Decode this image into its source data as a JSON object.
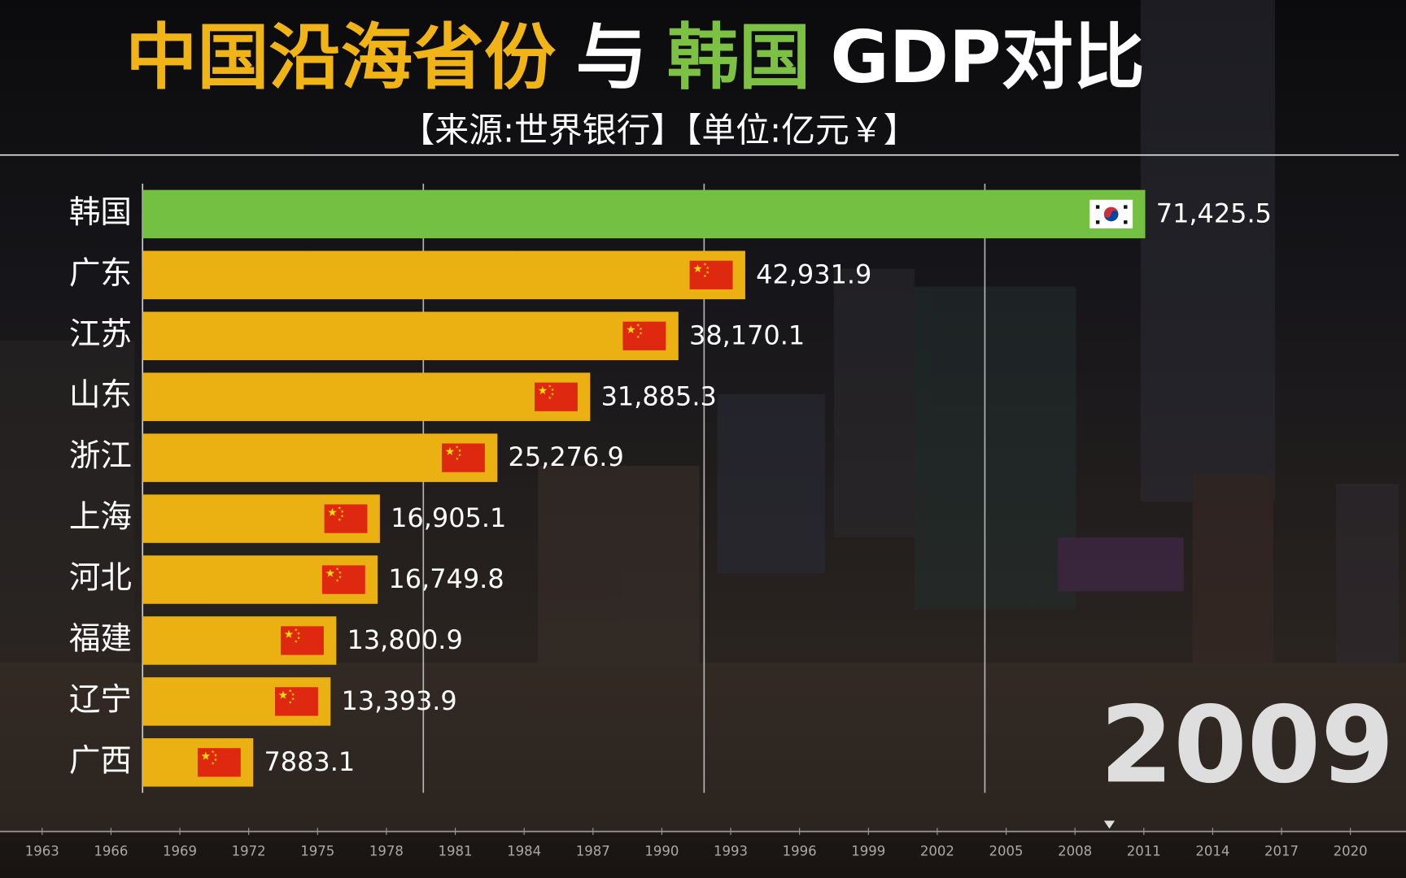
{
  "chart_data": {
    "type": "bar",
    "orientation": "horizontal",
    "title_parts": [
      {
        "text": "中国沿海省份",
        "color": "#f0b416"
      },
      {
        "text": "与",
        "color": "#ffffff"
      },
      {
        "text": "韩国",
        "color": "#7cc143"
      },
      {
        "text": "GDP对比",
        "color": "#ffffff"
      }
    ],
    "subtitle": "【来源:世界银行】【单位:亿元￥】",
    "categories": [
      "韩国",
      "广东",
      "江苏",
      "山东",
      "浙江",
      "上海",
      "河北",
      "福建",
      "辽宁",
      "广西"
    ],
    "values": [
      71425.5,
      42931.9,
      38170.1,
      31885.3,
      25276.9,
      16905.1,
      16749.8,
      13800.9,
      13393.9,
      7883.1
    ],
    "value_labels": [
      "71,425.5",
      "42,931.9",
      "38,170.1",
      "31,885.3",
      "25,276.9",
      "16,905.1",
      "16,749.8",
      "13,800.9",
      "13,393.9",
      "7883.1"
    ],
    "colors": [
      "#74c043",
      "#ebb012",
      "#ebb012",
      "#ebb012",
      "#ebb012",
      "#ebb012",
      "#ebb012",
      "#ebb012",
      "#ebb012",
      "#ebb012"
    ],
    "xlim": [
      0,
      90000
    ],
    "xticks": [
      20000,
      40000,
      60000
    ],
    "grid": true,
    "year": "2009",
    "timeline": {
      "ticks": [
        1963,
        1966,
        1969,
        1972,
        1975,
        1978,
        1981,
        1984,
        1987,
        1990,
        1993,
        1996,
        1999,
        2002,
        2005,
        2008,
        2011,
        2014,
        2017,
        2020
      ],
      "current": 2009.5
    }
  }
}
